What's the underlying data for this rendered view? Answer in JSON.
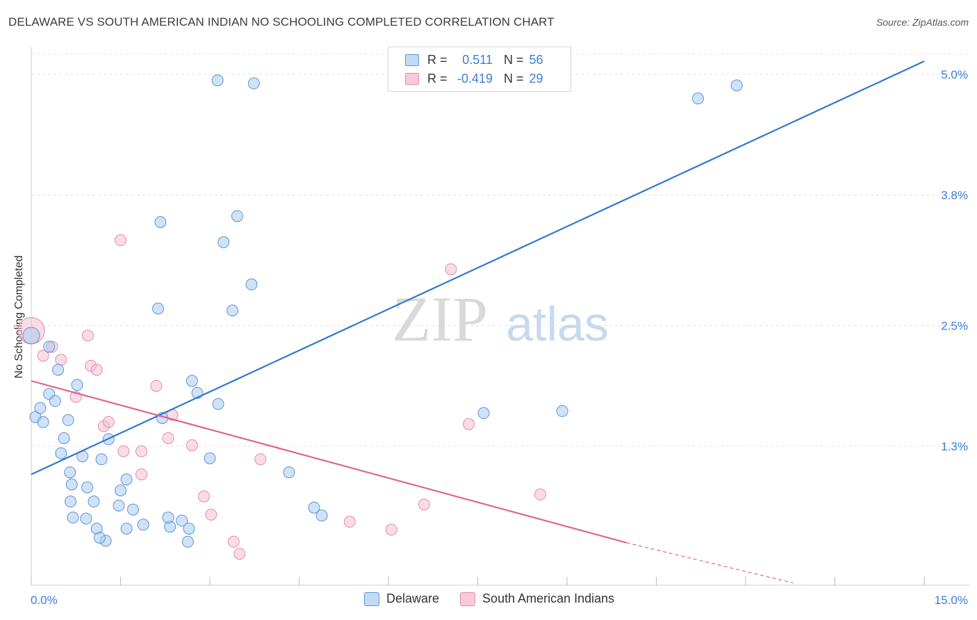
{
  "header": {
    "title": "DELAWARE VS SOUTH AMERICAN INDIAN NO SCHOOLING COMPLETED CORRELATION CHART",
    "source": "Source: ZipAtlas.com"
  },
  "watermark": {
    "zip": "ZIP",
    "atlas": "atlas"
  },
  "legend_top": {
    "rows": [
      {
        "r_label": "R =",
        "r_value": "0.511",
        "n_label": "N =",
        "n_value": "56"
      },
      {
        "r_label": "R =",
        "r_value": "-0.419",
        "n_label": "N =",
        "n_value": "29"
      }
    ]
  },
  "legend_bottom": {
    "items": [
      "Delaware",
      "South American Indians"
    ]
  },
  "chart_data": {
    "type": "scatter",
    "title": "DELAWARE VS SOUTH AMERICAN INDIAN NO SCHOOLING COMPLETED CORRELATION CHART",
    "xlabel": "",
    "ylabel": "No Schooling Completed",
    "xlim": [
      0,
      15
    ],
    "ylim": [
      0,
      5.2
    ],
    "x_tick_labels": [
      "0.0%",
      "15.0%"
    ],
    "y_ticks": [
      1.3,
      2.5,
      3.8,
      5.0
    ],
    "y_tick_labels": [
      "1.3%",
      "2.5%",
      "3.8%",
      "5.0%"
    ],
    "grid": true,
    "legend_placement": "bottom-center",
    "colors": {
      "delaware_fill": "#aacbf0",
      "delaware_stroke": "#5b93d6",
      "delaware_line": "#2f78d0",
      "sai_fill": "#f7bfd0",
      "sai_stroke": "#e58aa8",
      "sai_line": "#e0648f",
      "axis_label_color": "#3b7dd8"
    },
    "series": [
      {
        "name": "Delaware",
        "r": 0.511,
        "n": 56,
        "trend": {
          "x": [
            0,
            15
          ],
          "y": [
            1.02,
            5.13
          ]
        },
        "points": [
          [
            3.13,
            4.94
          ],
          [
            3.74,
            4.91
          ],
          [
            11.2,
            4.76
          ],
          [
            11.85,
            4.89
          ],
          [
            0.0,
            2.4
          ],
          [
            0.3,
            2.29
          ],
          [
            0.45,
            2.06
          ],
          [
            0.77,
            1.91
          ],
          [
            2.17,
            3.53
          ],
          [
            3.46,
            3.59
          ],
          [
            3.23,
            3.33
          ],
          [
            2.13,
            2.67
          ],
          [
            3.7,
            2.91
          ],
          [
            3.38,
            2.65
          ],
          [
            0.07,
            1.59
          ],
          [
            0.15,
            1.68
          ],
          [
            0.2,
            1.54
          ],
          [
            0.3,
            1.82
          ],
          [
            0.4,
            1.75
          ],
          [
            0.55,
            1.38
          ],
          [
            0.5,
            1.23
          ],
          [
            0.62,
            1.56
          ],
          [
            0.65,
            1.04
          ],
          [
            0.68,
            0.92
          ],
          [
            0.86,
            1.2
          ],
          [
            0.94,
            0.89
          ],
          [
            1.18,
            1.17
          ],
          [
            1.3,
            1.37
          ],
          [
            1.5,
            0.86
          ],
          [
            1.6,
            0.97
          ],
          [
            1.47,
            0.71
          ],
          [
            0.66,
            0.75
          ],
          [
            0.7,
            0.59
          ],
          [
            0.92,
            0.58
          ],
          [
            1.05,
            0.75
          ],
          [
            1.1,
            0.48
          ],
          [
            1.25,
            0.36
          ],
          [
            1.15,
            0.39
          ],
          [
            1.6,
            0.48
          ],
          [
            1.71,
            0.67
          ],
          [
            2.33,
            0.5
          ],
          [
            2.3,
            0.59
          ],
          [
            2.53,
            0.56
          ],
          [
            2.65,
            0.48
          ],
          [
            2.63,
            0.35
          ],
          [
            1.88,
            0.52
          ],
          [
            2.79,
            1.83
          ],
          [
            2.7,
            1.95
          ],
          [
            3.14,
            1.72
          ],
          [
            3.0,
            1.18
          ],
          [
            2.2,
            1.58
          ],
          [
            4.33,
            1.04
          ],
          [
            4.75,
            0.69
          ],
          [
            4.88,
            0.61
          ],
          [
            7.6,
            1.63
          ],
          [
            8.92,
            1.65
          ]
        ]
      },
      {
        "name": "South American Indians",
        "r": -0.419,
        "n": 29,
        "trend": {
          "x": [
            0,
            10.0
          ],
          "y": [
            1.95,
            0.34
          ]
        },
        "trend_dashed": {
          "x": [
            10.0,
            12.8
          ],
          "y": [
            0.34,
            -0.06
          ]
        },
        "points": [
          [
            0.0,
            2.45
          ],
          [
            0.2,
            2.2
          ],
          [
            0.35,
            2.29
          ],
          [
            0.5,
            2.16
          ],
          [
            0.95,
            2.4
          ],
          [
            1.0,
            2.1
          ],
          [
            1.1,
            2.06
          ],
          [
            0.75,
            1.79
          ],
          [
            1.22,
            1.5
          ],
          [
            1.3,
            1.54
          ],
          [
            1.5,
            3.35
          ],
          [
            1.55,
            1.25
          ],
          [
            1.85,
            1.25
          ],
          [
            2.1,
            1.9
          ],
          [
            2.3,
            1.38
          ],
          [
            2.37,
            1.61
          ],
          [
            2.7,
            1.31
          ],
          [
            1.85,
            1.02
          ],
          [
            2.9,
            0.8
          ],
          [
            3.02,
            0.62
          ],
          [
            3.4,
            0.35
          ],
          [
            3.5,
            0.23
          ],
          [
            3.85,
            1.17
          ],
          [
            5.35,
            0.55
          ],
          [
            6.05,
            0.47
          ],
          [
            6.6,
            0.72
          ],
          [
            7.35,
            1.52
          ],
          [
            7.05,
            3.06
          ],
          [
            8.55,
            0.82
          ]
        ]
      }
    ]
  }
}
